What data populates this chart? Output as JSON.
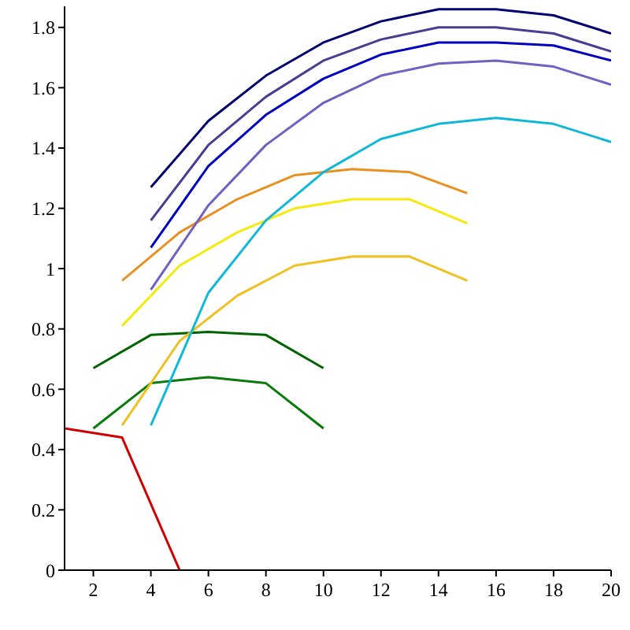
{
  "chart_data": {
    "type": "line",
    "xlim": [
      1,
      20
    ],
    "ylim": [
      0,
      1.87
    ],
    "xticks": [
      2,
      4,
      6,
      8,
      10,
      12,
      14,
      16,
      18,
      20
    ],
    "yticks": [
      0,
      0.2,
      0.4,
      0.6,
      0.8,
      1,
      1.2,
      1.4,
      1.6,
      1.8
    ],
    "grid": false,
    "legend": false,
    "marker": "none",
    "line_style": "solid",
    "series": [
      {
        "color": "#d00000",
        "x": [
          1,
          3,
          5
        ],
        "values": [
          0.47,
          0.44,
          0
        ]
      },
      {
        "color": "#006400",
        "x": [
          2,
          4,
          6,
          8,
          10
        ],
        "values": [
          0.67,
          0.78,
          0.79,
          0.78,
          0.67
        ]
      },
      {
        "color": "#0a7a0a",
        "x": [
          2,
          4,
          6,
          8,
          10
        ],
        "values": [
          0.47,
          0.62,
          0.64,
          0.62,
          0.47
        ]
      },
      {
        "color": "#f0c020",
        "x": [
          3,
          5,
          7,
          9,
          11,
          13,
          15
        ],
        "values": [
          0.48,
          0.76,
          0.91,
          1.01,
          1.04,
          1.04,
          0.96
        ]
      },
      {
        "color": "#f5ea10",
        "x": [
          3,
          5,
          7,
          9,
          11,
          13,
          15
        ],
        "values": [
          0.81,
          1.01,
          1.12,
          1.2,
          1.23,
          1.23,
          1.15
        ]
      },
      {
        "color": "#e89020",
        "x": [
          3,
          5,
          7,
          9,
          11,
          13,
          15
        ],
        "values": [
          0.96,
          1.12,
          1.23,
          1.31,
          1.33,
          1.32,
          1.25
        ]
      },
      {
        "color": "#10b8d8",
        "x": [
          4,
          6,
          8,
          10,
          12,
          14,
          16,
          18,
          20
        ],
        "values": [
          0.48,
          0.92,
          1.16,
          1.32,
          1.43,
          1.48,
          1.5,
          1.48,
          1.42
        ]
      },
      {
        "color": "#7060c0",
        "x": [
          4,
          6,
          8,
          10,
          12,
          14,
          16,
          18,
          20
        ],
        "values": [
          0.93,
          1.21,
          1.41,
          1.55,
          1.64,
          1.68,
          1.69,
          1.67,
          1.61
        ]
      },
      {
        "color": "#0000c0",
        "x": [
          4,
          6,
          8,
          10,
          12,
          14,
          16,
          18,
          20
        ],
        "values": [
          1.07,
          1.34,
          1.51,
          1.63,
          1.71,
          1.75,
          1.75,
          1.74,
          1.69
        ]
      },
      {
        "color": "#4a3c90",
        "x": [
          4,
          6,
          8,
          10,
          12,
          14,
          16,
          18,
          20
        ],
        "values": [
          1.16,
          1.41,
          1.57,
          1.69,
          1.76,
          1.8,
          1.8,
          1.78,
          1.72
        ]
      },
      {
        "color": "#000070",
        "x": [
          4,
          6,
          8,
          10,
          12,
          14,
          16,
          18,
          20
        ],
        "values": [
          1.27,
          1.49,
          1.64,
          1.75,
          1.82,
          1.86,
          1.86,
          1.84,
          1.78
        ]
      }
    ]
  }
}
